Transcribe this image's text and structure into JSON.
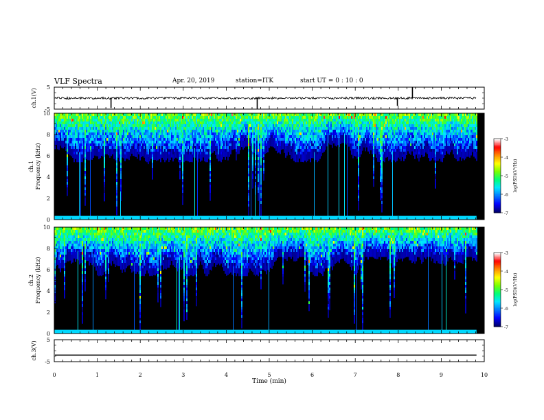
{
  "header": {
    "title": "VLF Spectra",
    "date": "Apr. 20, 2019",
    "station": "station=ITK",
    "start_ut": "start  UT =   0 : 10 : 0"
  },
  "colors": {
    "spectrogram_background": "#000000",
    "colormap": [
      "#00006e",
      "#0000ff",
      "#0078ff",
      "#00e6ff",
      "#00ff78",
      "#78ff00",
      "#ffff00",
      "#ff8c00",
      "#ff0000",
      "#ffffff"
    ]
  },
  "chart_data": [
    {
      "type": "line",
      "name": "ch1-waveform",
      "ylabel": "ch.1(V)",
      "xlim": [
        0,
        10
      ],
      "ylim": [
        -5,
        5
      ],
      "yticks": [
        "5",
        "-5"
      ],
      "baseline": 0,
      "spikes": [
        {
          "x": 1.32,
          "y": -4.5
        },
        {
          "x": 4.72,
          "y": -5.0
        },
        {
          "x": 7.98,
          "y": -3.5
        },
        {
          "x": 8.33,
          "y": 5.0
        }
      ],
      "x_end": 9.82
    },
    {
      "type": "heatmap",
      "name": "ch1-spectrogram",
      "ylabel": "ch.1\nFrequency (kHz)",
      "xlim": [
        0,
        10
      ],
      "ylim": [
        0,
        10
      ],
      "yticks": [
        "0",
        "2",
        "4",
        "6",
        "8",
        "10"
      ],
      "colorbar": {
        "label": "log(PSD)(V²/Hz)",
        "ticks": [
          "-3",
          "-4",
          "-5",
          "-6",
          "-7"
        ],
        "range": [
          -7,
          -3
        ]
      },
      "x_end": 9.82
    },
    {
      "type": "heatmap",
      "name": "ch2-spectrogram",
      "ylabel": "ch.2\nFrequency (kHz)",
      "xlim": [
        0,
        10
      ],
      "ylim": [
        0,
        10
      ],
      "yticks": [
        "0",
        "2",
        "4",
        "6",
        "8",
        "10"
      ],
      "colorbar": {
        "label": "log(PSD)(V²/Hz)",
        "ticks": [
          "-3",
          "-4",
          "-5",
          "-6",
          "-7"
        ],
        "range": [
          -7,
          -3
        ]
      },
      "x_end": 9.82
    },
    {
      "type": "line",
      "name": "ch3-waveform",
      "ylabel": "ch.3(V)",
      "xlim": [
        0,
        10
      ],
      "ylim": [
        -5,
        5
      ],
      "yticks": [
        "5",
        "-5"
      ],
      "baseline": -2,
      "x_end": 9.82
    }
  ],
  "x_axis": {
    "label": "Time (min)",
    "ticks": [
      "0",
      "1",
      "2",
      "3",
      "4",
      "5",
      "6",
      "7",
      "8",
      "9",
      "10"
    ]
  }
}
